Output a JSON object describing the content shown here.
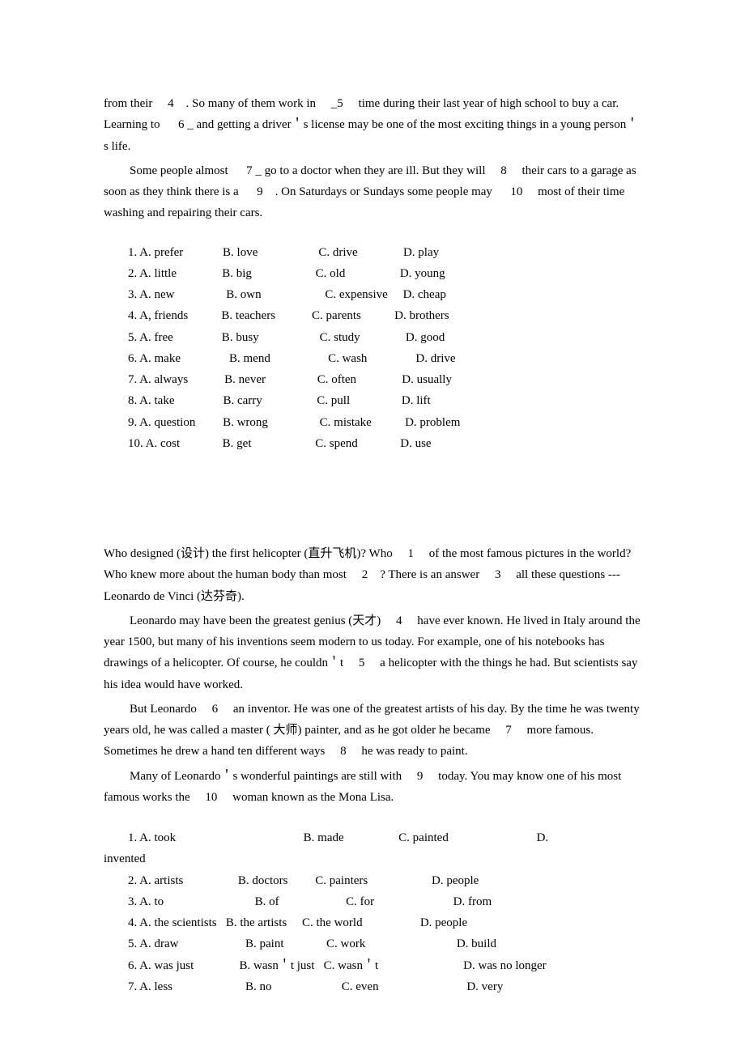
{
  "passage1": {
    "p1": "from their 　4　. So many of them work in 　_5　 time during their last year of high school to buy a car. Learning to 　 6 _ and getting a driver＇s license may be one of the most exciting things in a young person＇s life.",
    "p2": "Some people almost 　 7 _ go to a doctor when they are ill. But they will 　8　 their cars to a garage as soon as they think there is a 　 9　. On Saturdays or Sundays some people may 　 10　 most of their time washing and repairing their cars."
  },
  "choices1": [
    "1. A. prefer             B. love                    C. drive               D. play",
    "2. A. little               B. big                     C. old                  D. young",
    "3. A. new                 B. own                     C. expensive     D. cheap",
    "4. A, friends           B. teachers            C. parents           D. brothers",
    "5. A. free                B. busy                    C. study               D. good",
    "6. A. make                B. mend                   C. wash                D. drive",
    "7. A. always            B. never                 C. often               D. usually",
    "8. A. take                B. carry                  C. pull                 D. lift",
    "9. A. question         B. wrong                 C. mistake           D. problem",
    "10. A. cost              B. get                     C. spend              D. use"
  ],
  "passage2": {
    "p1": "Who designed (设计) the first helicopter (直升飞机)? Who 　1　 of the most famous pictures in the world? Who knew more about the human body than most 　2　? There is an answer 　3　 all these   questions --- Leonardo de Vinci (达芬奇).",
    "p2": "Leonardo may have been the greatest genius (天才) 　4　 have ever known. He lived in Italy around the year 1500, but many of his inventions seem modern to us today. For example, one of his notebooks has drawings of a helicopter. Of course, he couldn＇t 　5　 a helicopter with the things he had. But scientists say his idea would have worked.",
    "p3": "But Leonardo 　6　 an inventor. He was one of the greatest artists of his day. By the time he was twenty years old, he was called a master (  大师) painter, and as he got older he became 　7　 more famous. Sometimes he drew a hand ten different ways 　8　 he was ready to paint.",
    "p4": "Many of Leonardo＇s wonderful paintings are still with 　9　 today. You may know one of his most famous works the 　10　 woman known as the Mona Lisa."
  },
  "choices2": [
    "1. A. took                                          B. made                  C. painted                             D. ",
    "2. A. artists                  B. doctors         C. painters                     D. people",
    "3. A. to                              B. of                      C. for                          D. from",
    "4. A. the scientists   B. the artists     C. the world                   D. people",
    "5. A. draw                      B. paint              C. work                              D. build",
    "6. A. was just               B. wasn＇t just   C. wasn＇t                            D. was no longer",
    "7. A. less                        B. no                       C. even                             D. very"
  ],
  "choices2_wrap": "invented"
}
